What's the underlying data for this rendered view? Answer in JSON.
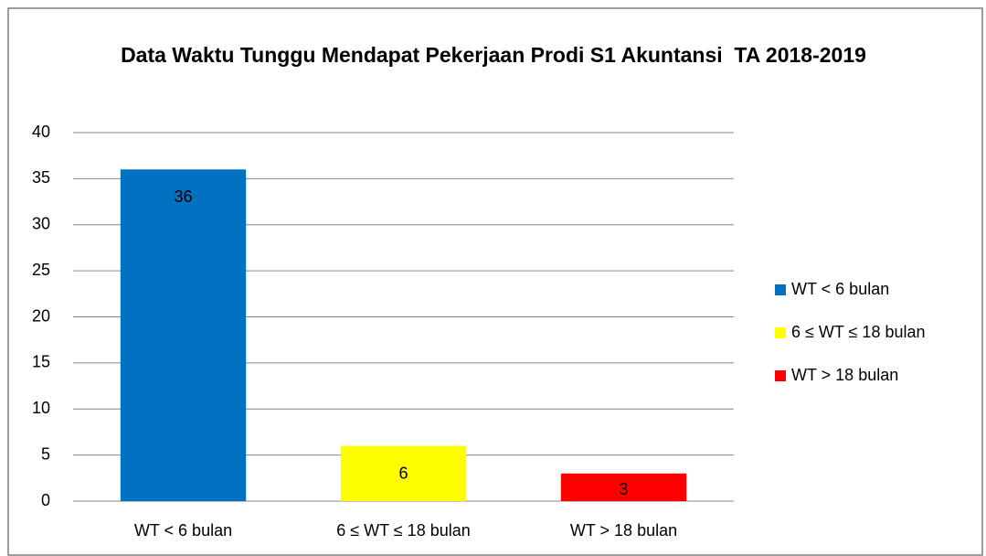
{
  "chart_data": {
    "type": "bar",
    "title": "Data Waktu Tunggu Mendapat Pekerjaan Prodi S1 Akuntansi  TA 2018-2019",
    "categories": [
      "WT < 6 bulan",
      "6 ≤ WT ≤ 18 bulan",
      "WT > 18 bulan"
    ],
    "values": [
      36,
      6,
      3
    ],
    "colors": [
      "#0070c0",
      "#ffff00",
      "#ff0000"
    ],
    "ylim": [
      0,
      40
    ],
    "yticks": [
      0,
      5,
      10,
      15,
      20,
      25,
      30,
      35,
      40
    ],
    "grid": true,
    "legend": "right"
  }
}
